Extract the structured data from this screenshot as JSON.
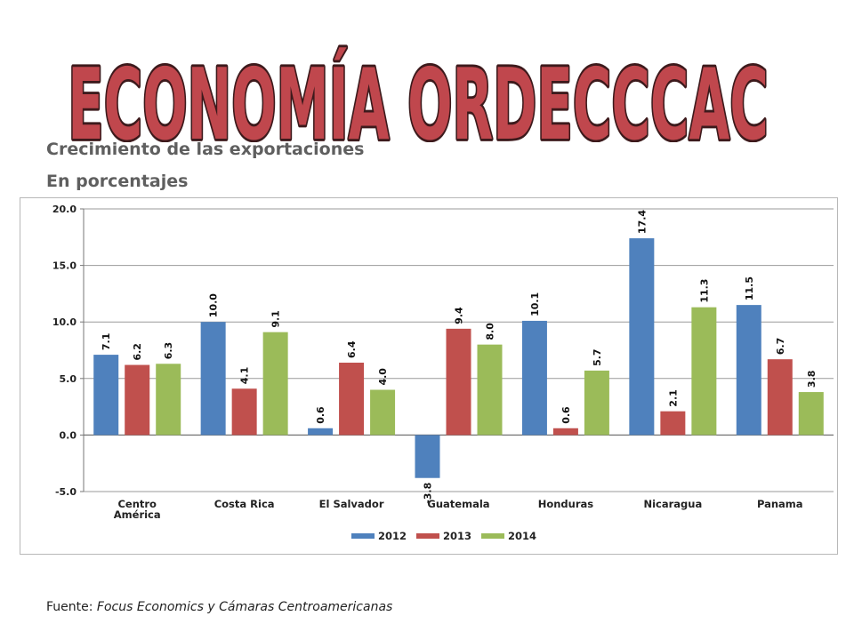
{
  "banner": {
    "text": "ECONOMÍA ORDECCCAC",
    "fill": "#c0474d",
    "stroke": "#3d1a1c"
  },
  "subtitle_1": "Crecimiento de las exportaciones",
  "subtitle_2": "En porcentajes",
  "source": {
    "prefix": "Fuente: ",
    "text": "Focus Economics y Cámaras Centroamericanas"
  },
  "chart_data": {
    "type": "bar",
    "categories": [
      "Centro América",
      "Costa Rica",
      "El Salvador",
      "Guatemala",
      "Honduras",
      "Nicaragua",
      "Panama"
    ],
    "series": [
      {
        "name": "2012",
        "color": "#4f81bd",
        "values": [
          7.1,
          10.0,
          0.6,
          -3.8,
          10.1,
          17.4,
          11.5
        ]
      },
      {
        "name": "2013",
        "color": "#c0504d",
        "values": [
          6.2,
          4.1,
          6.4,
          9.4,
          0.6,
          2.1,
          6.7
        ]
      },
      {
        "name": "2014",
        "color": "#9bbb59",
        "values": [
          6.3,
          9.1,
          4.0,
          8.0,
          5.7,
          11.3,
          3.8
        ]
      }
    ],
    "ylim": [
      -5.0,
      20.0
    ],
    "yticks": [
      "-5.0",
      "0.0",
      "5.0",
      "10.0",
      "15.0",
      "20.0"
    ],
    "grid": true,
    "legend_position": "bottom"
  }
}
